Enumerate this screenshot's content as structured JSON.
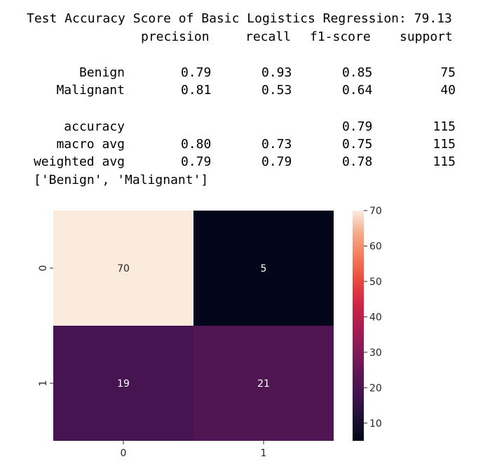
{
  "output": {
    "title_line": "Test Accuracy Score of Basic Logistics Regression: 79.13",
    "header": [
      "precision",
      "recall",
      "f1-score",
      "support"
    ],
    "rows": [
      {
        "label": "Benign",
        "precision": "0.79",
        "recall": "0.93",
        "f1": "0.85",
        "support": "75"
      },
      {
        "label": "Malignant",
        "precision": "0.81",
        "recall": "0.53",
        "f1": "0.64",
        "support": "40"
      }
    ],
    "summary": [
      {
        "label": "accuracy",
        "precision": "",
        "recall": "",
        "f1": "0.79",
        "support": "115"
      },
      {
        "label": "macro avg",
        "precision": "0.80",
        "recall": "0.73",
        "f1": "0.75",
        "support": "115"
      },
      {
        "label": "weighted avg",
        "precision": "0.79",
        "recall": "0.79",
        "f1": "0.78",
        "support": "115"
      }
    ],
    "class_list": "['Benign', 'Malignant']"
  },
  "chart_data": {
    "type": "heatmap",
    "rows": [
      "0",
      "1"
    ],
    "cols": [
      "0",
      "1"
    ],
    "values": [
      [
        70,
        5
      ],
      [
        19,
        21
      ]
    ],
    "colormap": "rocket",
    "vmin": 5,
    "vmax": 70,
    "colorbar_ticks": [
      10,
      20,
      30,
      40,
      50,
      60,
      70
    ]
  }
}
